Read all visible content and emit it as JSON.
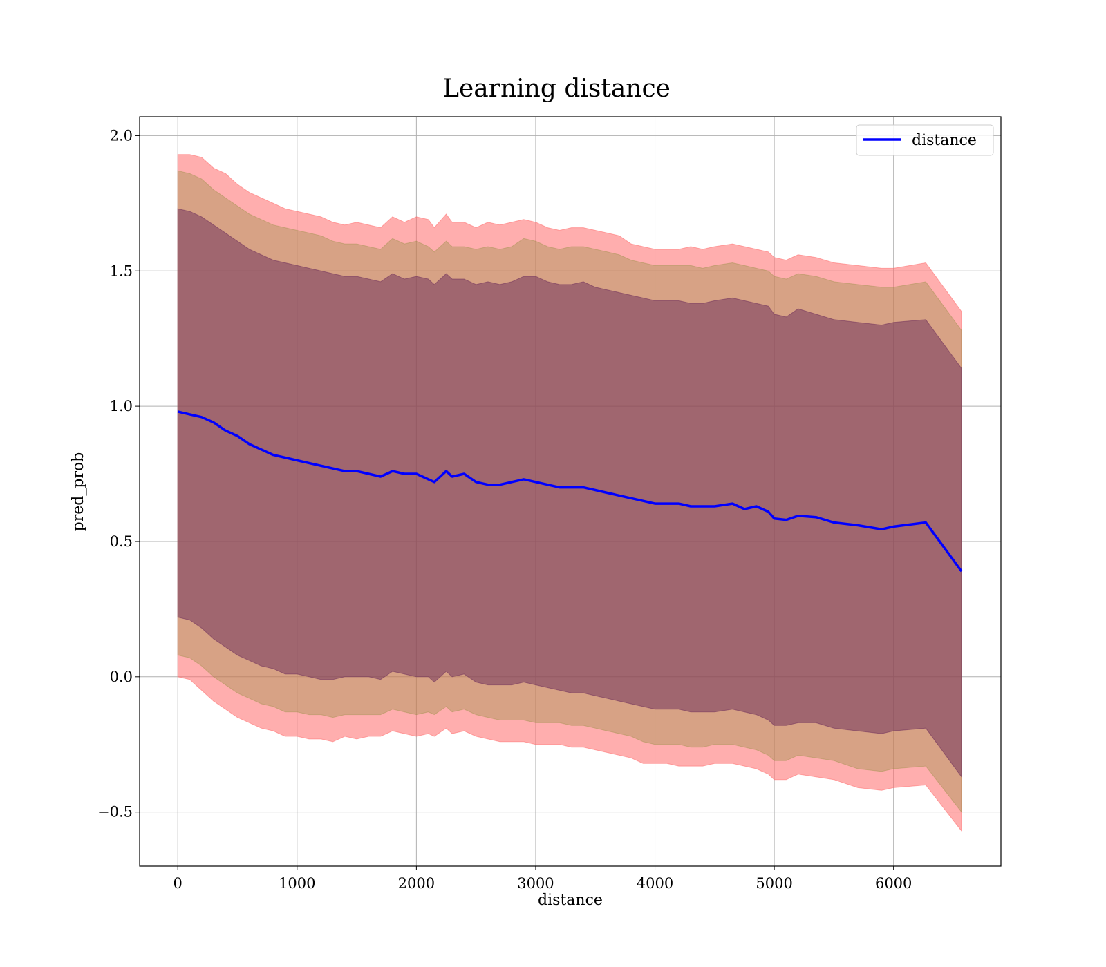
{
  "chart_data": {
    "type": "line",
    "title": "Learning distance",
    "xlabel": "distance",
    "ylabel": "pred_prob",
    "xlim": [
      -320,
      6900
    ],
    "ylim": [
      -0.7,
      2.07
    ],
    "x_ticks": [
      0,
      1000,
      2000,
      3000,
      4000,
      5000,
      6000
    ],
    "y_ticks": [
      -0.5,
      0.0,
      0.5,
      1.0,
      1.5,
      2.0
    ],
    "x_tick_labels": [
      "0",
      "1000",
      "2000",
      "3000",
      "4000",
      "5000",
      "6000"
    ],
    "y_tick_labels": [
      "−0.5",
      "0.0",
      "0.5",
      "1.0",
      "1.5",
      "2.0"
    ],
    "grid": true,
    "legend": {
      "position": "top-right",
      "entries": [
        "distance"
      ]
    },
    "series": [
      {
        "name": "distance",
        "color": "#0000ff",
        "x": [
          0,
          100,
          200,
          300,
          400,
          500,
          600,
          700,
          800,
          900,
          1000,
          1100,
          1200,
          1300,
          1400,
          1500,
          1600,
          1700,
          1800,
          1900,
          2000,
          2100,
          2150,
          2250,
          2300,
          2400,
          2500,
          2600,
          2700,
          2800,
          2900,
          3000,
          3100,
          3200,
          3300,
          3400,
          3500,
          3600,
          3700,
          3800,
          3900,
          4000,
          4100,
          4200,
          4300,
          4400,
          4500,
          4650,
          4750,
          4850,
          4950,
          5000,
          5100,
          5200,
          5350,
          5500,
          5700,
          5900,
          6000,
          6270,
          6570
        ],
        "y": [
          0.98,
          0.97,
          0.96,
          0.94,
          0.91,
          0.89,
          0.86,
          0.84,
          0.82,
          0.81,
          0.8,
          0.79,
          0.78,
          0.77,
          0.76,
          0.76,
          0.75,
          0.74,
          0.76,
          0.75,
          0.75,
          0.73,
          0.72,
          0.76,
          0.74,
          0.75,
          0.72,
          0.71,
          0.71,
          0.72,
          0.73,
          0.72,
          0.71,
          0.7,
          0.7,
          0.7,
          0.69,
          0.68,
          0.67,
          0.66,
          0.65,
          0.64,
          0.64,
          0.64,
          0.63,
          0.63,
          0.63,
          0.64,
          0.62,
          0.63,
          0.61,
          0.585,
          0.58,
          0.595,
          0.59,
          0.57,
          0.56,
          0.545,
          0.555,
          0.57,
          0.39
        ]
      }
    ],
    "bands": [
      {
        "color": "#ff6b6b",
        "opacity": 0.55,
        "lower": [
          0.0,
          -0.01,
          -0.05,
          -0.09,
          -0.12,
          -0.15,
          -0.17,
          -0.19,
          -0.2,
          -0.22,
          -0.22,
          -0.23,
          -0.23,
          -0.24,
          -0.22,
          -0.23,
          -0.22,
          -0.22,
          -0.2,
          -0.21,
          -0.22,
          -0.21,
          -0.22,
          -0.19,
          -0.21,
          -0.2,
          -0.22,
          -0.23,
          -0.24,
          -0.24,
          -0.24,
          -0.25,
          -0.25,
          -0.25,
          -0.26,
          -0.26,
          -0.27,
          -0.28,
          -0.29,
          -0.3,
          -0.32,
          -0.32,
          -0.32,
          -0.33,
          -0.33,
          -0.33,
          -0.32,
          -0.32,
          -0.33,
          -0.34,
          -0.36,
          -0.38,
          -0.38,
          -0.36,
          -0.37,
          -0.38,
          -0.41,
          -0.42,
          -0.41,
          -0.4,
          -0.57
        ],
        "upper": [
          1.93,
          1.93,
          1.92,
          1.88,
          1.86,
          1.82,
          1.79,
          1.77,
          1.75,
          1.73,
          1.72,
          1.71,
          1.7,
          1.68,
          1.67,
          1.68,
          1.67,
          1.66,
          1.7,
          1.68,
          1.7,
          1.69,
          1.66,
          1.71,
          1.68,
          1.68,
          1.66,
          1.68,
          1.67,
          1.68,
          1.69,
          1.68,
          1.66,
          1.65,
          1.66,
          1.66,
          1.65,
          1.64,
          1.63,
          1.6,
          1.59,
          1.58,
          1.58,
          1.58,
          1.59,
          1.58,
          1.59,
          1.6,
          1.59,
          1.58,
          1.57,
          1.55,
          1.54,
          1.56,
          1.55,
          1.53,
          1.52,
          1.51,
          1.51,
          1.53,
          1.35
        ]
      },
      {
        "color": "#8b8b3a",
        "opacity": 0.35,
        "lower": [
          0.08,
          0.07,
          0.04,
          0.0,
          -0.03,
          -0.06,
          -0.08,
          -0.1,
          -0.11,
          -0.13,
          -0.13,
          -0.14,
          -0.14,
          -0.15,
          -0.14,
          -0.14,
          -0.14,
          -0.14,
          -0.12,
          -0.13,
          -0.14,
          -0.13,
          -0.14,
          -0.11,
          -0.13,
          -0.12,
          -0.14,
          -0.15,
          -0.16,
          -0.16,
          -0.16,
          -0.17,
          -0.17,
          -0.17,
          -0.18,
          -0.18,
          -0.19,
          -0.2,
          -0.21,
          -0.22,
          -0.24,
          -0.25,
          -0.25,
          -0.25,
          -0.26,
          -0.26,
          -0.25,
          -0.25,
          -0.26,
          -0.27,
          -0.29,
          -0.31,
          -0.31,
          -0.29,
          -0.3,
          -0.31,
          -0.34,
          -0.35,
          -0.34,
          -0.33,
          -0.5
        ],
        "upper": [
          1.87,
          1.86,
          1.84,
          1.8,
          1.77,
          1.74,
          1.71,
          1.69,
          1.67,
          1.66,
          1.65,
          1.64,
          1.63,
          1.61,
          1.6,
          1.6,
          1.59,
          1.58,
          1.62,
          1.6,
          1.61,
          1.59,
          1.57,
          1.61,
          1.59,
          1.59,
          1.58,
          1.59,
          1.58,
          1.59,
          1.62,
          1.61,
          1.59,
          1.58,
          1.59,
          1.59,
          1.58,
          1.57,
          1.56,
          1.54,
          1.53,
          1.52,
          1.52,
          1.52,
          1.52,
          1.51,
          1.52,
          1.53,
          1.52,
          1.51,
          1.5,
          1.48,
          1.47,
          1.49,
          1.48,
          1.46,
          1.45,
          1.44,
          1.44,
          1.46,
          1.28
        ]
      },
      {
        "color": "#6a2a5a",
        "opacity": 0.5,
        "lower": [
          0.22,
          0.21,
          0.18,
          0.14,
          0.11,
          0.08,
          0.06,
          0.04,
          0.03,
          0.01,
          0.01,
          0.0,
          -0.01,
          -0.01,
          0.0,
          0.0,
          0.0,
          -0.01,
          0.02,
          0.01,
          0.0,
          0.0,
          -0.02,
          0.02,
          0.0,
          0.01,
          -0.02,
          -0.03,
          -0.03,
          -0.03,
          -0.02,
          -0.03,
          -0.04,
          -0.05,
          -0.06,
          -0.06,
          -0.07,
          -0.08,
          -0.09,
          -0.1,
          -0.11,
          -0.12,
          -0.12,
          -0.12,
          -0.13,
          -0.13,
          -0.13,
          -0.12,
          -0.13,
          -0.14,
          -0.16,
          -0.18,
          -0.18,
          -0.17,
          -0.17,
          -0.19,
          -0.2,
          -0.21,
          -0.2,
          -0.19,
          -0.37
        ],
        "upper": [
          1.73,
          1.72,
          1.7,
          1.67,
          1.64,
          1.61,
          1.58,
          1.56,
          1.54,
          1.53,
          1.52,
          1.51,
          1.5,
          1.49,
          1.48,
          1.48,
          1.47,
          1.46,
          1.49,
          1.47,
          1.48,
          1.47,
          1.45,
          1.49,
          1.47,
          1.47,
          1.45,
          1.46,
          1.45,
          1.46,
          1.48,
          1.48,
          1.46,
          1.45,
          1.45,
          1.46,
          1.44,
          1.43,
          1.42,
          1.41,
          1.4,
          1.39,
          1.39,
          1.39,
          1.38,
          1.38,
          1.39,
          1.4,
          1.39,
          1.38,
          1.37,
          1.34,
          1.33,
          1.36,
          1.34,
          1.32,
          1.31,
          1.3,
          1.31,
          1.32,
          1.14
        ]
      }
    ]
  }
}
